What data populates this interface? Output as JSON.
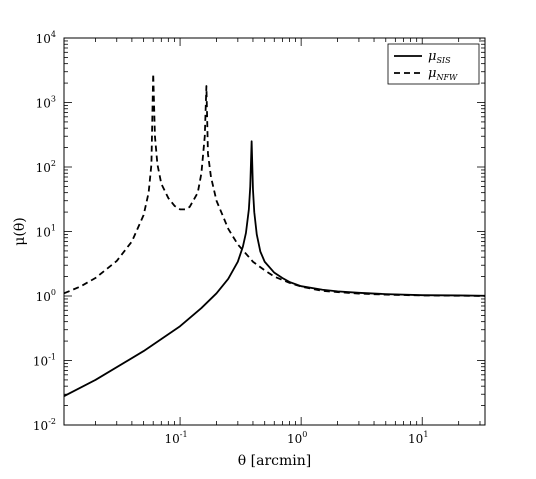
{
  "chart_data": {
    "type": "line",
    "xlabel": "θ [arcmin]",
    "ylabel": "μ(θ)",
    "xscale": "log",
    "yscale": "log",
    "xlim": [
      0.011,
      33
    ],
    "ylim": [
      0.01,
      10000
    ],
    "grid": false,
    "legend": "top-right",
    "xticks": [
      {
        "base": "10",
        "exp": "-1",
        "value": 0.1
      },
      {
        "base": "10",
        "exp": "0",
        "value": 1
      },
      {
        "base": "10",
        "exp": "1",
        "value": 10
      }
    ],
    "yticks": [
      {
        "base": "10",
        "exp": "-2",
        "value": 0.01
      },
      {
        "base": "10",
        "exp": "-1",
        "value": 0.1
      },
      {
        "base": "10",
        "exp": "0",
        "value": 1
      },
      {
        "base": "10",
        "exp": "1",
        "value": 10
      },
      {
        "base": "10",
        "exp": "2",
        "value": 100
      },
      {
        "base": "10",
        "exp": "3",
        "value": 1000
      },
      {
        "base": "10",
        "exp": "4",
        "value": 10000
      }
    ],
    "series": [
      {
        "name": "μ_SIS",
        "legend_base": "μ",
        "legend_sub": "SIS",
        "style": "solid",
        "color": "#000000",
        "x": [
          0.011,
          0.02,
          0.05,
          0.1,
          0.15,
          0.2,
          0.25,
          0.3,
          0.33,
          0.35,
          0.37,
          0.38,
          0.39,
          0.4,
          0.41,
          0.43,
          0.46,
          0.5,
          0.6,
          0.7,
          0.8,
          1.0,
          1.5,
          2,
          3,
          5,
          10,
          20,
          33
        ],
        "y": [
          0.028,
          0.05,
          0.14,
          0.34,
          0.65,
          1.1,
          1.85,
          3.4,
          5.8,
          9.5,
          22,
          50,
          250,
          45,
          20,
          9,
          4.9,
          3.4,
          2.3,
          1.9,
          1.65,
          1.42,
          1.25,
          1.18,
          1.12,
          1.07,
          1.03,
          1.02,
          1.01
        ]
      },
      {
        "name": "μ_NFW",
        "legend_base": "μ",
        "legend_sub": "NFW",
        "style": "dashed",
        "color": "#000000",
        "x": [
          0.011,
          0.015,
          0.02,
          0.03,
          0.04,
          0.05,
          0.055,
          0.058,
          0.06,
          0.062,
          0.065,
          0.07,
          0.08,
          0.09,
          0.1,
          0.11,
          0.12,
          0.14,
          0.15,
          0.16,
          0.165,
          0.17,
          0.18,
          0.2,
          0.25,
          0.3,
          0.4,
          0.5,
          0.6,
          0.8,
          1.0,
          1.5,
          2,
          3,
          5,
          10,
          20,
          33
        ],
        "y": [
          1.1,
          1.4,
          1.9,
          3.5,
          7,
          18,
          40,
          110,
          2800,
          300,
          110,
          55,
          33,
          25,
          22,
          22,
          24,
          40,
          80,
          300,
          1800,
          160,
          70,
          30,
          11,
          6.3,
          3.4,
          2.5,
          2.0,
          1.6,
          1.4,
          1.2,
          1.15,
          1.09,
          1.05,
          1.02,
          1.01,
          1.0
        ]
      }
    ]
  }
}
